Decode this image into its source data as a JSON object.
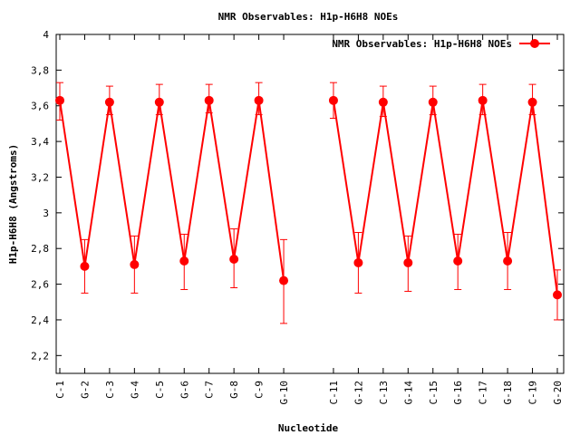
{
  "chart_data": {
    "type": "line",
    "title": "NMR Observables: H1p-H6H8 NOEs",
    "xlabel": "Nucleotide",
    "ylabel": "H1p-H6H8 (Angstroms)",
    "ylim": [
      2.1,
      4.0
    ],
    "yticks": [
      "2,2",
      "2,4",
      "2,6",
      "2,8",
      "3",
      "3,2",
      "3,4",
      "3,6",
      "3,8",
      "4"
    ],
    "ytick_values": [
      2.2,
      2.4,
      2.6,
      2.8,
      3.0,
      3.2,
      3.4,
      3.6,
      3.8,
      4.0
    ],
    "legend_position": "top-right",
    "grid": false,
    "series_color": "#ff0000",
    "categories": [
      "C-1",
      "G-2",
      "C-3",
      "G-4",
      "C-5",
      "G-6",
      "C-7",
      "G-8",
      "C-9",
      "G-10",
      "C-11",
      "G-12",
      "C-13",
      "G-14",
      "C-15",
      "G-16",
      "C-17",
      "G-18",
      "C-19",
      "G-20"
    ],
    "series": [
      {
        "name": "NMR Observables: H1p-H6H8 NOEs",
        "segments": [
          {
            "x": [
              1,
              2,
              3,
              4,
              5,
              6,
              7,
              8,
              9,
              10
            ],
            "values": [
              3.63,
              2.7,
              3.62,
              2.71,
              3.62,
              2.73,
              3.63,
              2.74,
              3.63,
              2.62
            ],
            "err_low": [
              3.52,
              2.55,
              3.55,
              2.55,
              3.55,
              2.57,
              3.56,
              2.58,
              3.55,
              2.38
            ],
            "err_high": [
              3.73,
              2.85,
              3.71,
              2.87,
              3.72,
              2.88,
              3.72,
              2.91,
              3.73,
              2.85
            ]
          },
          {
            "x": [
              12,
              13,
              14,
              15,
              16,
              17,
              18,
              19,
              20,
              21
            ],
            "values": [
              3.63,
              2.72,
              3.62,
              2.72,
              3.62,
              2.73,
              3.63,
              2.73,
              3.62,
              2.54
            ],
            "err_low": [
              3.53,
              2.55,
              3.54,
              2.56,
              3.55,
              2.57,
              3.55,
              2.57,
              3.55,
              2.4
            ],
            "err_high": [
              3.73,
              2.89,
              3.71,
              2.87,
              3.71,
              2.88,
              3.72,
              2.89,
              3.72,
              2.68
            ]
          }
        ]
      }
    ],
    "category_x": [
      1,
      2,
      3,
      4,
      5,
      6,
      7,
      8,
      9,
      10,
      12,
      13,
      14,
      15,
      16,
      17,
      18,
      19,
      20,
      21
    ],
    "xlim": [
      1,
      21
    ]
  }
}
